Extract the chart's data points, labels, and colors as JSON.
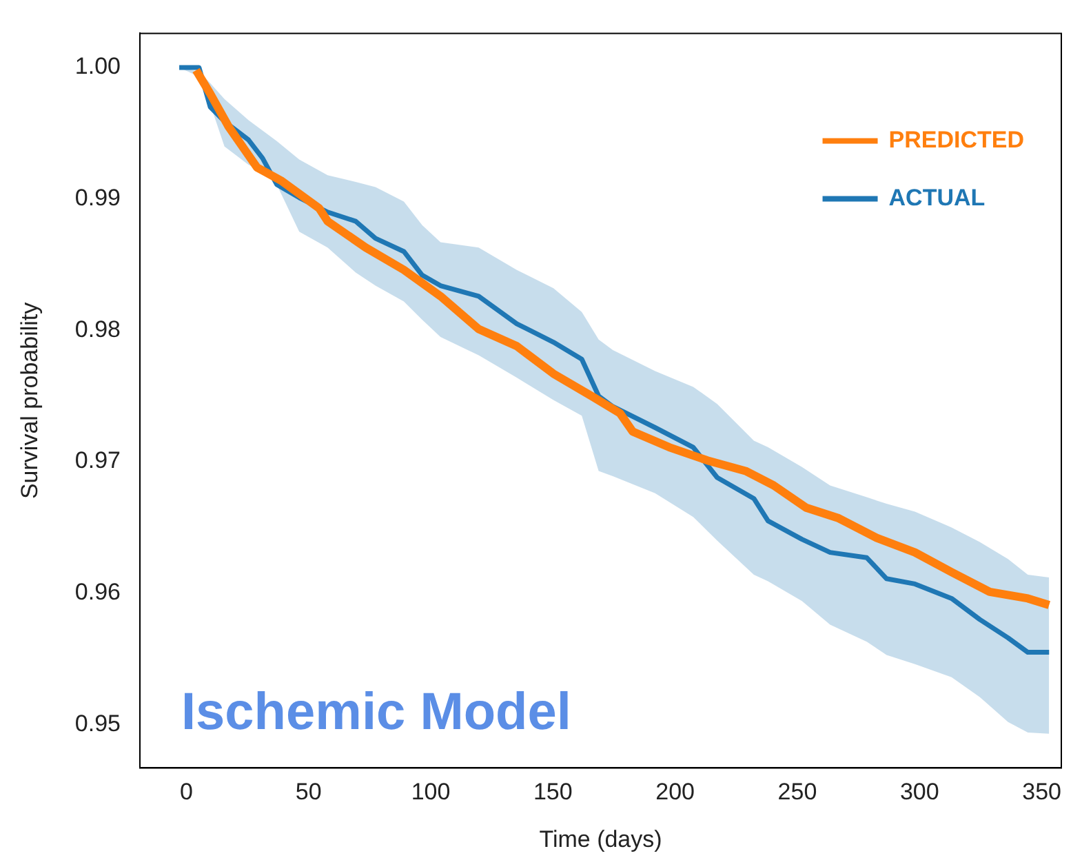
{
  "chart_data": {
    "type": "line",
    "xlabel": "Time (days)",
    "ylabel": "Survival probability",
    "annotations": [
      "Ischemic Model"
    ],
    "xlim": [
      -19,
      358
    ],
    "ylim": [
      0.9467,
      1.0026
    ],
    "xticks": [
      0,
      50,
      100,
      150,
      200,
      250,
      300,
      350
    ],
    "yticks": [
      0.95,
      0.96,
      0.97,
      0.98,
      0.99,
      {
        "value": 1,
        "label": "1.00"
      }
    ],
    "grid": false,
    "legend": "top right",
    "series": [
      {
        "name": "PREDICTED",
        "color": "#ff7f0e",
        "x": [
          4.0,
          9.8,
          17.3,
          28.9,
          38.7,
          54.3,
          57.8,
          73.4,
          89.0,
          104,
          119.6,
          135.2,
          150.2,
          165.8,
          177.4,
          182.6,
          197.6,
          213.2,
          228.8,
          240.3,
          253.6,
          266.9,
          282.5,
          298.1,
          313.1,
          328.7,
          344.3,
          353
        ],
        "values": [
          0.9998,
          0.998,
          0.9955,
          0.9924,
          0.9914,
          0.9893,
          0.9883,
          0.9863,
          0.9846,
          0.9826,
          0.9801,
          0.9788,
          0.9767,
          0.975,
          0.9737,
          0.9723,
          0.9711,
          0.9701,
          0.9693,
          0.9682,
          0.9665,
          0.9657,
          0.9642,
          0.9631,
          0.9616,
          0.9601,
          0.9596,
          0.9591
        ]
      },
      {
        "name": "ACTUAL",
        "color": "#1f77b4",
        "x": [
          -2.9,
          5.2,
          9.8,
          15.6,
          25.4,
          31.2,
          37.0,
          46.2,
          57.8,
          69.3,
          77.4,
          89.0,
          96.5,
          104,
          119.6,
          135.2,
          150.2,
          161.8,
          168.7,
          174.5,
          191.8,
          207.4,
          217.2,
          232.2,
          238,
          251.9,
          263.4,
          278.4,
          286.5,
          298.1,
          313.1,
          324.6,
          336.2,
          344.3,
          353
        ],
        "values": [
          1.0,
          1.0,
          0.997,
          0.9959,
          0.9945,
          0.9931,
          0.9911,
          0.9901,
          0.989,
          0.9883,
          0.987,
          0.986,
          0.9842,
          0.9834,
          0.9826,
          0.9805,
          0.9791,
          0.9778,
          0.975,
          0.9742,
          0.9726,
          0.9711,
          0.9688,
          0.9672,
          0.9655,
          0.9641,
          0.9631,
          0.9627,
          0.9611,
          0.9607,
          0.9596,
          0.958,
          0.9566,
          0.9555,
          0.9555
        ],
        "upper": [
          1.0,
          0.9997,
          0.9988,
          0.9976,
          0.996,
          0.9952,
          0.9944,
          0.993,
          0.9918,
          0.9913,
          0.9909,
          0.9898,
          0.988,
          0.9867,
          0.9863,
          0.9846,
          0.9832,
          0.9814,
          0.9793,
          0.9785,
          0.9769,
          0.9757,
          0.9744,
          0.9716,
          0.9711,
          0.9696,
          0.9682,
          0.9673,
          0.9668,
          0.9662,
          0.965,
          0.9639,
          0.9626,
          0.9614,
          0.9612
        ],
        "lower": [
          1.0,
          0.9993,
          0.9972,
          0.994,
          0.9926,
          0.9921,
          0.9911,
          0.9875,
          0.9863,
          0.9844,
          0.9834,
          0.9822,
          0.9808,
          0.9795,
          0.9781,
          0.9764,
          0.9747,
          0.9735,
          0.9693,
          0.9689,
          0.9676,
          0.9658,
          0.964,
          0.9614,
          0.9609,
          0.9594,
          0.9576,
          0.9563,
          0.9553,
          0.9546,
          0.9536,
          0.9521,
          0.9502,
          0.9494,
          0.9493
        ]
      }
    ]
  }
}
